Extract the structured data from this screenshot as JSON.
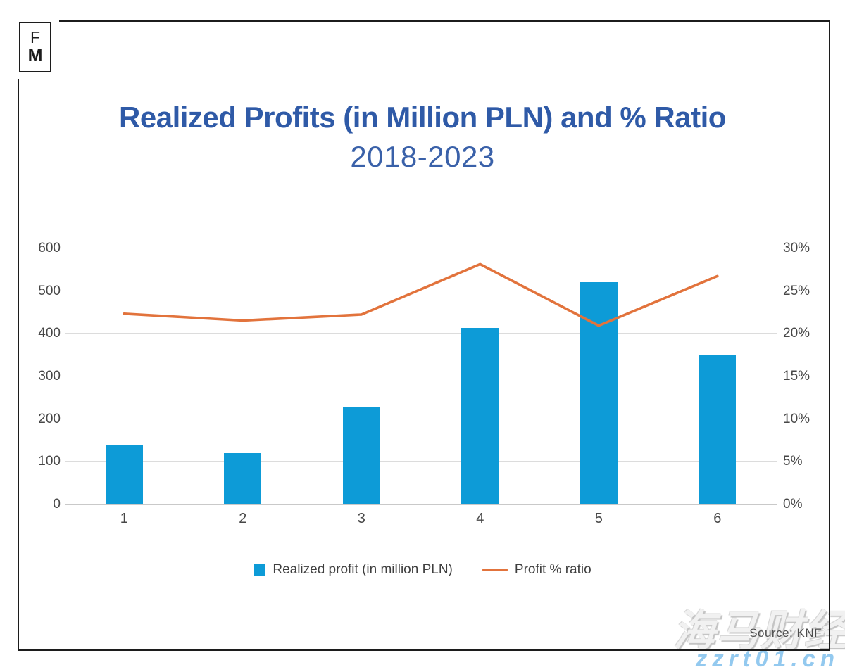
{
  "logo": {
    "top": "F",
    "bottom": "M"
  },
  "header": {
    "title": "Realized Profits (in Million PLN) and % Ratio",
    "subtitle": "2018-2023"
  },
  "source_note": "Source: KNF",
  "watermark": {
    "brand": "海马财经",
    "site": "zzrt01.cn"
  },
  "colors": {
    "title": "#2f5aa7",
    "bar": "#0d9bd7",
    "line": "#e2733c",
    "grid": "#dcdcdc",
    "axis_text": "#474747",
    "frame": "#1c1c1c"
  },
  "legend": {
    "items": [
      {
        "label": "Realized profit (in million PLN)",
        "swatch": "square"
      },
      {
        "label": "Profit % ratio",
        "swatch": "line"
      }
    ]
  },
  "chart_data": {
    "type": "bar",
    "title": "Realized Profits (in Million PLN) and % Ratio",
    "subtitle": "2018-2023",
    "categories": [
      "1",
      "2",
      "3",
      "4",
      "5",
      "6"
    ],
    "series": [
      {
        "name": "Realized profit (in million PLN)",
        "chart_type": "bar",
        "axis": "left",
        "values": [
          138,
          119,
          226,
          412,
          519,
          349
        ]
      },
      {
        "name": "Profit % ratio",
        "chart_type": "line",
        "axis": "right",
        "values": [
          22.3,
          21.5,
          22.2,
          28.1,
          20.9,
          26.7
        ]
      }
    ],
    "left_axis": {
      "label": "",
      "min": 0,
      "max": 600,
      "ticks": [
        0,
        100,
        200,
        300,
        400,
        500,
        600
      ]
    },
    "right_axis": {
      "label": "",
      "min": 0,
      "max": 30,
      "tick_labels": [
        "0%",
        "5%",
        "10%",
        "15%",
        "20%",
        "25%",
        "30%"
      ]
    },
    "grid": true,
    "legend_position": "bottom"
  }
}
